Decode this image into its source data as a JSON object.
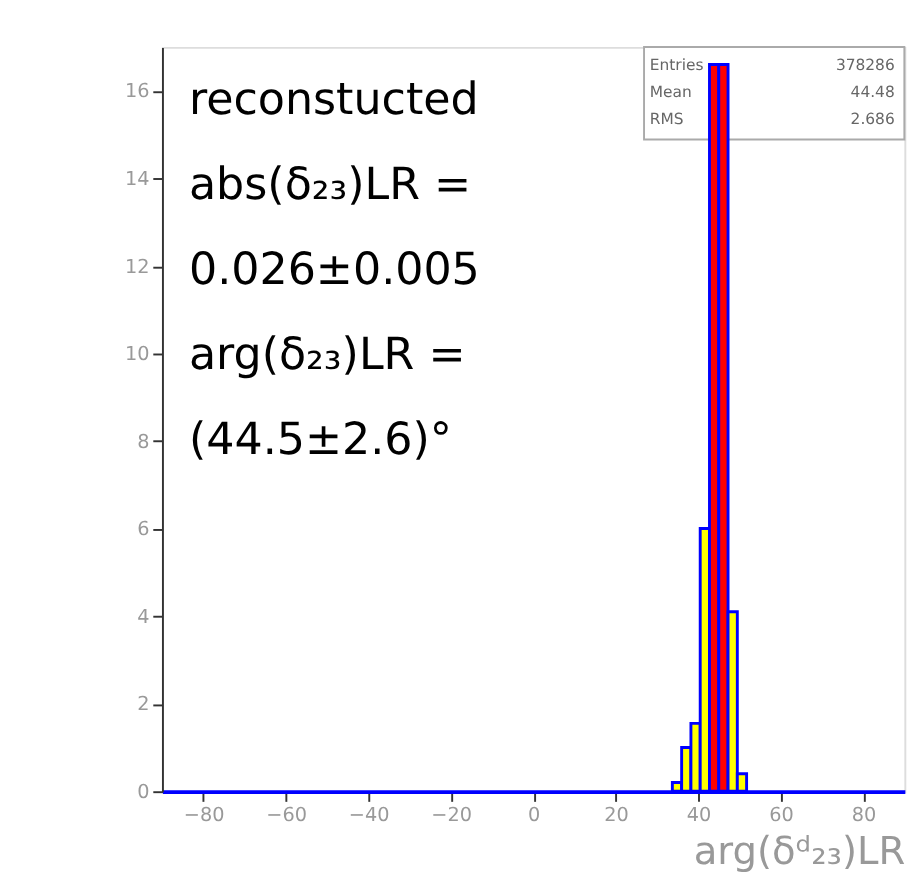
{
  "chart_data": {
    "type": "histogram",
    "xlabel": "arg(δᵈ₂₃)LR",
    "bins": [
      33.75,
      36,
      38.25,
      40.5,
      42.75,
      45,
      47.25,
      49.5,
      51.75
    ],
    "values": [
      0.2,
      1.0,
      1.55,
      6.0,
      16.6,
      16.6,
      4.1,
      0.4
    ],
    "colors": [
      "#ffff00",
      "#ffff00",
      "#ffff00",
      "#ffff00",
      "#ff0000",
      "#ff0000",
      "#ffff00",
      "#ffff00"
    ],
    "xlim": [
      -90,
      90
    ],
    "xticks": [
      -80,
      -60,
      -40,
      -20,
      0,
      20,
      40,
      60,
      80
    ],
    "ylim": [
      0,
      17
    ],
    "yticks": [
      0,
      2,
      4,
      6,
      8,
      10,
      12,
      14,
      16
    ],
    "grid": false,
    "annotations": [
      "reconstucted",
      "abs(δ₂₃)LR =",
      "0.026±0.005",
      "arg(δ₂₃)LR =",
      "(44.5±2.6)°",
      "Entries 378286",
      "Mean 44.48",
      "RMS 2.686"
    ]
  }
}
